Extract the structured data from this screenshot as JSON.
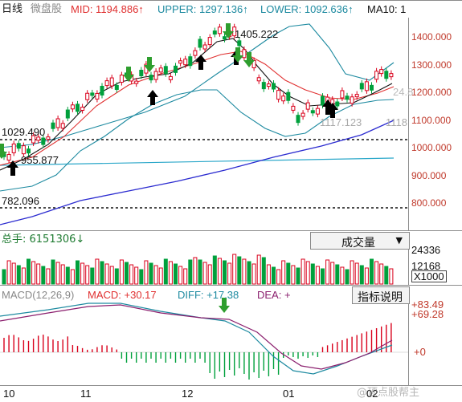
{
  "colors": {
    "up": "#d9001b",
    "down": "#00a03c",
    "mid": "#e03030",
    "upper": "#1d8aa0",
    "lower": "#1d8aa0",
    "ma10": "#111111",
    "ma_long": "#2b2bd0",
    "cyan_line": "#2aa7c9",
    "arrow_up": "#000000",
    "arrow_down": "#2e9e2e",
    "diff": "#1d8aa0",
    "dea": "#8b1f6e",
    "frame": "#8c8c8c"
  },
  "header": {
    "period": "日线",
    "index_name": "微盘股",
    "mid": "MID: 1194.886↑",
    "upper": "UPPER: 1297.136↑",
    "lower": "LOWER: 1092.636↑",
    "ma10": "MA10: 1"
  },
  "price_axis": {
    "ticks": [
      "1400.000",
      "1300.000",
      "1200.000",
      "1100.000",
      "1000.000",
      "900.000",
      "800.000"
    ],
    "hidden_label_partial": "24.8"
  },
  "annotations": {
    "high": "1405.222",
    "low_early": "955.877",
    "level_high": "1029.490",
    "level_low": "782.096",
    "recent_low": "1117.123",
    "recent_low_suffix": "1118"
  },
  "volume_pane": {
    "title": "总手: 6151306↓",
    "dropdown_label": "成交量",
    "dropdown_caret": "▼",
    "ticks": [
      "24336",
      "12168"
    ],
    "unit": "X1000"
  },
  "macd_pane": {
    "params": "MACD(12,26,9)",
    "macd": "MACD: +30.17",
    "diff": "DIFF: +17.38",
    "dea": "DEA: +",
    "help_button": "指标说明",
    "ticks": [
      "+83.49",
      "+69.28",
      "+0"
    ]
  },
  "time_axis": {
    "labels": [
      "10",
      "11",
      "12",
      "01",
      "02"
    ]
  },
  "watermark": "@顶点股帮主"
}
